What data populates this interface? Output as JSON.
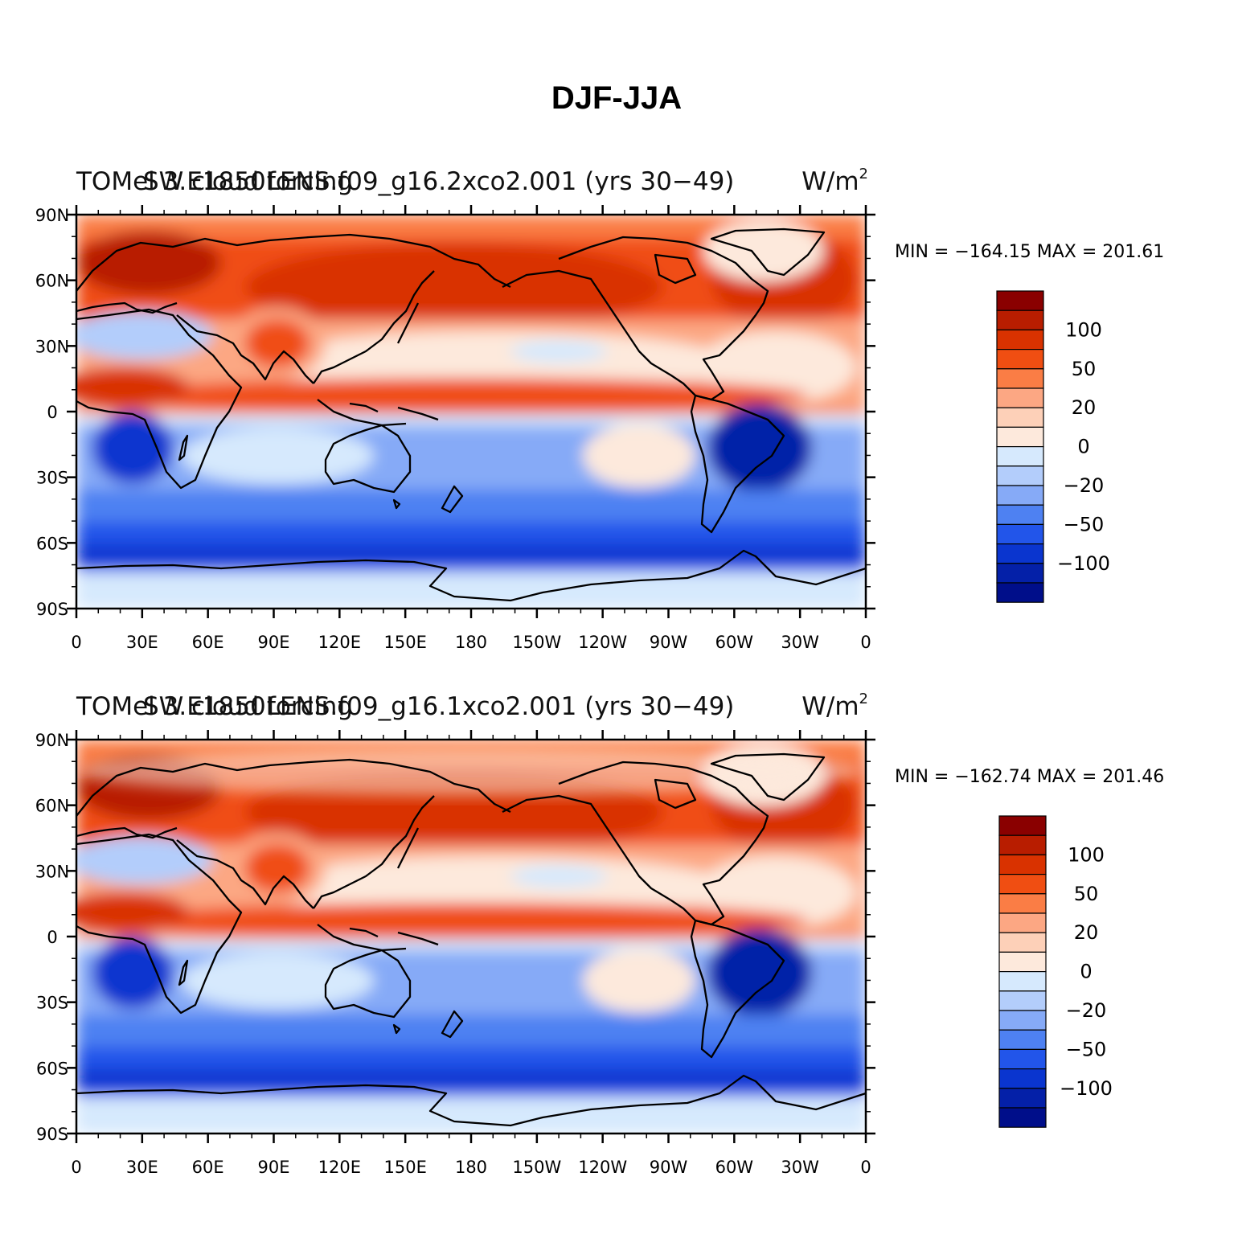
{
  "figure": {
    "title": "DJF-JJA"
  },
  "colorbar": {
    "levels": [
      "100",
      "50",
      "20",
      "0",
      "−20",
      "−50",
      "−100"
    ],
    "colors": [
      "#8a0000",
      "#b81d00",
      "#d93200",
      "#f04e12",
      "#fa7d45",
      "#fca783",
      "#fdd0b8",
      "#fde9dc",
      "#d6e9fd",
      "#b3cdfb",
      "#86aaf7",
      "#4e81f2",
      "#2255ea",
      "#0a35cf",
      "#0420a8",
      "#000e8a"
    ]
  },
  "panels": [
    {
      "case_label": "TOMel 3.E1850LENS.f09_g16.2xco2.001 (yrs 30−49)",
      "var_label": "SW cloud forcing",
      "units": "W/m",
      "units_sup": "2",
      "stats": "MIN = −164.15 MAX = 201.61"
    },
    {
      "case_label": "TOMel 3.E1850LENS.f09_g16.1xco2.001 (yrs 30−49)",
      "var_label": "SW cloud forcing",
      "units": "W/m",
      "units_sup": "2",
      "stats": "MIN = −162.74 MAX = 201.46"
    }
  ],
  "axes": {
    "lat_ticks": [
      "90N",
      "60N",
      "30N",
      "0",
      "30S",
      "60S",
      "90S"
    ],
    "lon_ticks": [
      "0",
      "30E",
      "60E",
      "90E",
      "120E",
      "150E",
      "180",
      "150W",
      "120W",
      "90W",
      "60W",
      "30W",
      "0"
    ]
  }
}
